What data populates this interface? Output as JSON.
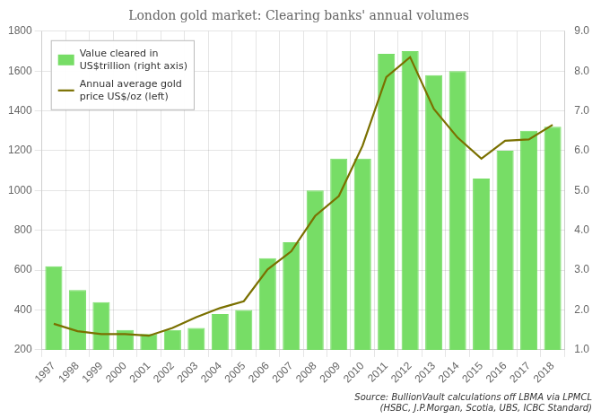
{
  "chart_data": {
    "type": "bar",
    "title": "London gold market: Clearing banks' annual volumes",
    "categories": [
      "1997",
      "1998",
      "1999",
      "2000",
      "2001",
      "2002",
      "2003",
      "2004",
      "2005",
      "2006",
      "2007",
      "2008",
      "2009",
      "2010",
      "2011",
      "2012",
      "2013",
      "2014",
      "2015",
      "2016",
      "2017",
      "2018"
    ],
    "series": [
      {
        "name": "Value cleared in\nUS$trillion (right axis)",
        "type": "bar",
        "axis": "y2",
        "color": "#77dd66",
        "values": [
          3.1,
          2.5,
          2.2,
          1.5,
          1.4,
          1.5,
          1.55,
          1.9,
          2.0,
          3.3,
          3.7,
          5.0,
          5.8,
          5.8,
          8.43,
          8.5,
          7.9,
          8.0,
          5.3,
          6.0,
          6.5,
          6.6
        ]
      },
      {
        "name": "Annual average gold\nprice US$/oz (left)",
        "type": "line",
        "color": "#7a7000",
        "values": [
          331,
          294,
          279,
          279,
          271,
          310,
          364,
          410,
          444,
          604,
          695,
          872,
          972,
          1225,
          1570,
          1670,
          1410,
          1266,
          1160,
          1250,
          1257,
          1330
        ]
      }
    ],
    "ylim": [
      200,
      1800
    ],
    "yticks": [
      200,
      400,
      600,
      800,
      1000,
      1200,
      1400,
      1600,
      1800
    ],
    "y2lim": [
      1.0,
      9.0
    ],
    "y2ticks": [
      {
        "value": 1,
        "label": "1.0"
      },
      {
        "value": 2,
        "label": "2.0"
      },
      {
        "value": 3,
        "label": "3.0"
      },
      {
        "value": 4,
        "label": "4.0"
      },
      {
        "value": 5,
        "label": "5.0"
      },
      {
        "value": 6,
        "label": "6.0"
      },
      {
        "value": 7,
        "label": "7.0"
      },
      {
        "value": 8,
        "label": "8.0"
      },
      {
        "value": 9,
        "label": "9.0"
      }
    ],
    "grid": true,
    "legend": "upper left",
    "annotations": [
      "Source: BullionVault calculations off LBMA via LPMCL\n(HSBC, J.P.Morgan, Scotia, UBS, ICBC Standard)"
    ]
  }
}
